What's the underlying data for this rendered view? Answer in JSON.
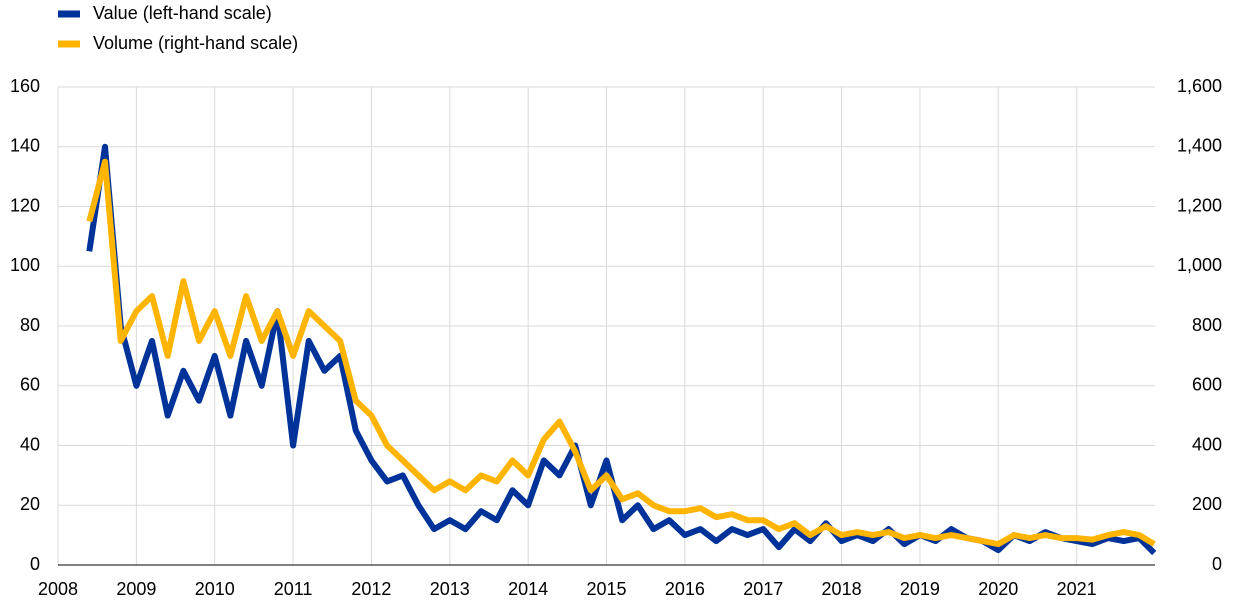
{
  "chart_data": {
    "type": "line",
    "x": [
      2008.4,
      2008.6,
      2008.8,
      2009,
      2009.2,
      2009.4,
      2009.6,
      2009.8,
      2010,
      2010.2,
      2010.4,
      2010.6,
      2010.8,
      2011,
      2011.2,
      2011.4,
      2011.6,
      2011.8,
      2012,
      2012.2,
      2012.4,
      2012.6,
      2012.8,
      2013,
      2013.2,
      2013.4,
      2013.6,
      2013.8,
      2014,
      2014.2,
      2014.4,
      2014.6,
      2014.8,
      2015,
      2015.2,
      2015.4,
      2015.6,
      2015.8,
      2016,
      2016.2,
      2016.4,
      2016.6,
      2016.8,
      2017,
      2017.2,
      2017.4,
      2017.6,
      2017.8,
      2018,
      2018.2,
      2018.4,
      2018.6,
      2018.8,
      2019,
      2019.2,
      2019.4,
      2019.6,
      2019.8,
      2020,
      2020.2,
      2020.4,
      2020.6,
      2020.8,
      2021,
      2021.2,
      2021.4,
      2021.6,
      2021.8,
      2021.99
    ],
    "series": [
      {
        "name": "Value (left-hand scale)",
        "color": "#003399",
        "axis": "y",
        "values": [
          105,
          140,
          80,
          60,
          75,
          50,
          65,
          55,
          70,
          50,
          75,
          60,
          85,
          40,
          75,
          65,
          70,
          45,
          35,
          28,
          30,
          20,
          12,
          15,
          12,
          18,
          15,
          25,
          20,
          35,
          30,
          40,
          20,
          35,
          15,
          20,
          12,
          15,
          10,
          12,
          8,
          12,
          10,
          12,
          6,
          12,
          8,
          14,
          8,
          10,
          8,
          12,
          7,
          10,
          8,
          12,
          9,
          8,
          5,
          10,
          8,
          11,
          9,
          8,
          7,
          9,
          8,
          9,
          4
        ]
      },
      {
        "name": "Volume (right-hand scale)",
        "color": "#ffb400",
        "axis": "y2",
        "values": [
          1150,
          1350,
          750,
          850,
          900,
          700,
          950,
          750,
          850,
          700,
          900,
          750,
          850,
          700,
          850,
          800,
          750,
          550,
          500,
          400,
          350,
          300,
          250,
          280,
          250,
          300,
          280,
          350,
          300,
          420,
          480,
          380,
          250,
          300,
          220,
          240,
          200,
          180,
          180,
          190,
          160,
          170,
          150,
          150,
          120,
          140,
          100,
          130,
          100,
          110,
          100,
          110,
          90,
          100,
          90,
          100,
          90,
          80,
          70,
          100,
          90,
          100,
          90,
          90,
          85,
          100,
          110,
          100,
          70
        ]
      }
    ],
    "xlim": [
      2008,
      2022
    ],
    "xticks": [
      2008,
      2009,
      2010,
      2011,
      2012,
      2013,
      2014,
      2015,
      2016,
      2017,
      2018,
      2019,
      2020,
      2021
    ],
    "ylim": [
      0,
      160
    ],
    "yticks": [
      0,
      20,
      40,
      60,
      80,
      100,
      120,
      140,
      160
    ],
    "y2lim": [
      0,
      1600
    ],
    "y2ticks": [
      0,
      200,
      400,
      600,
      800,
      {
        "value": 1000,
        "label": "1,000"
      },
      {
        "value": 1200,
        "label": "1,200"
      },
      {
        "value": 1400,
        "label": "1,400"
      },
      {
        "value": 1600,
        "label": "1,600"
      }
    ],
    "grid": true
  }
}
